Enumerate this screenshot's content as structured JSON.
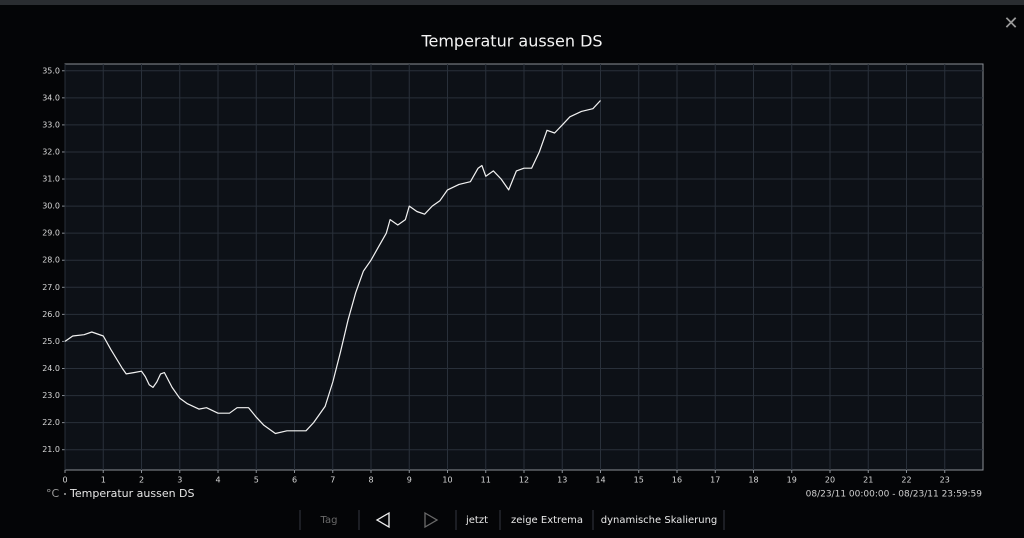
{
  "window": {
    "close": "✕"
  },
  "chart_data": {
    "type": "line",
    "title": "Temperatur aussen DS",
    "unit": "°C",
    "x": [
      0,
      0.2,
      0.5,
      0.7,
      1.0,
      1.2,
      1.5,
      1.6,
      1.8,
      2.0,
      2.1,
      2.2,
      2.3,
      2.4,
      2.5,
      2.6,
      2.8,
      3.0,
      3.2,
      3.5,
      3.7,
      4.0,
      4.3,
      4.5,
      4.8,
      5.0,
      5.2,
      5.5,
      5.8,
      6.0,
      6.3,
      6.5,
      6.8,
      7.0,
      7.2,
      7.4,
      7.6,
      7.8,
      8.0,
      8.2,
      8.4,
      8.5,
      8.7,
      8.9,
      9.0,
      9.2,
      9.4,
      9.6,
      9.8,
      10.0,
      10.3,
      10.6,
      10.8,
      10.9,
      11.0,
      11.2,
      11.4,
      11.6,
      11.8,
      12.0,
      12.2,
      12.4,
      12.6,
      12.8,
      13.0,
      13.2,
      13.5,
      13.8,
      14.0
    ],
    "series": [
      {
        "name": "Temperatur aussen DS",
        "color": "#f2f2f2",
        "values": [
          25.0,
          25.2,
          25.25,
          25.35,
          25.2,
          24.7,
          24.0,
          23.8,
          23.85,
          23.9,
          23.7,
          23.4,
          23.3,
          23.5,
          23.8,
          23.85,
          23.3,
          22.9,
          22.7,
          22.5,
          22.55,
          22.35,
          22.35,
          22.55,
          22.55,
          22.2,
          21.9,
          21.6,
          21.7,
          21.7,
          21.7,
          22.0,
          22.6,
          23.5,
          24.6,
          25.8,
          26.8,
          27.6,
          28.0,
          28.5,
          29.0,
          29.5,
          29.3,
          29.5,
          30.0,
          29.8,
          29.7,
          30.0,
          30.2,
          30.6,
          30.8,
          30.9,
          31.4,
          31.5,
          31.1,
          31.3,
          31.0,
          30.6,
          31.3,
          31.4,
          31.4,
          32.0,
          32.8,
          32.7,
          33.0,
          33.3,
          33.5,
          33.6,
          33.9
        ]
      }
    ],
    "xlim": [
      0,
      24
    ],
    "ylim": [
      20.25,
      35.25
    ],
    "xticks": [
      0,
      1,
      2,
      3,
      4,
      5,
      6,
      7,
      8,
      9,
      10,
      11,
      12,
      13,
      14,
      15,
      16,
      17,
      18,
      19,
      20,
      21,
      22,
      23
    ],
    "yticks": [
      {
        "value": 21,
        "label": "21.0"
      },
      {
        "value": 22,
        "label": "22.0"
      },
      {
        "value": 23,
        "label": "23.0"
      },
      {
        "value": 24,
        "label": "24.0"
      },
      {
        "value": 25,
        "label": "25.0"
      },
      {
        "value": 26,
        "label": "26.0"
      },
      {
        "value": 27,
        "label": "27.0"
      },
      {
        "value": 28,
        "label": "28.0"
      },
      {
        "value": 29,
        "label": "29.0"
      },
      {
        "value": 30,
        "label": "30.0"
      },
      {
        "value": 31,
        "label": "31.0"
      },
      {
        "value": 32,
        "label": "32.0"
      },
      {
        "value": 33,
        "label": "33.0"
      },
      {
        "value": 34,
        "label": "34.0"
      },
      {
        "value": 35,
        "label": "35.0"
      }
    ],
    "grid": true,
    "range": "08/23/11 00:00:00 - 08/23/11 23:59:59"
  },
  "toolbar": {
    "period": "Tag",
    "now": "jetzt",
    "extrema": "zeige Extrema",
    "scaling": "dynamische Skalierung"
  }
}
